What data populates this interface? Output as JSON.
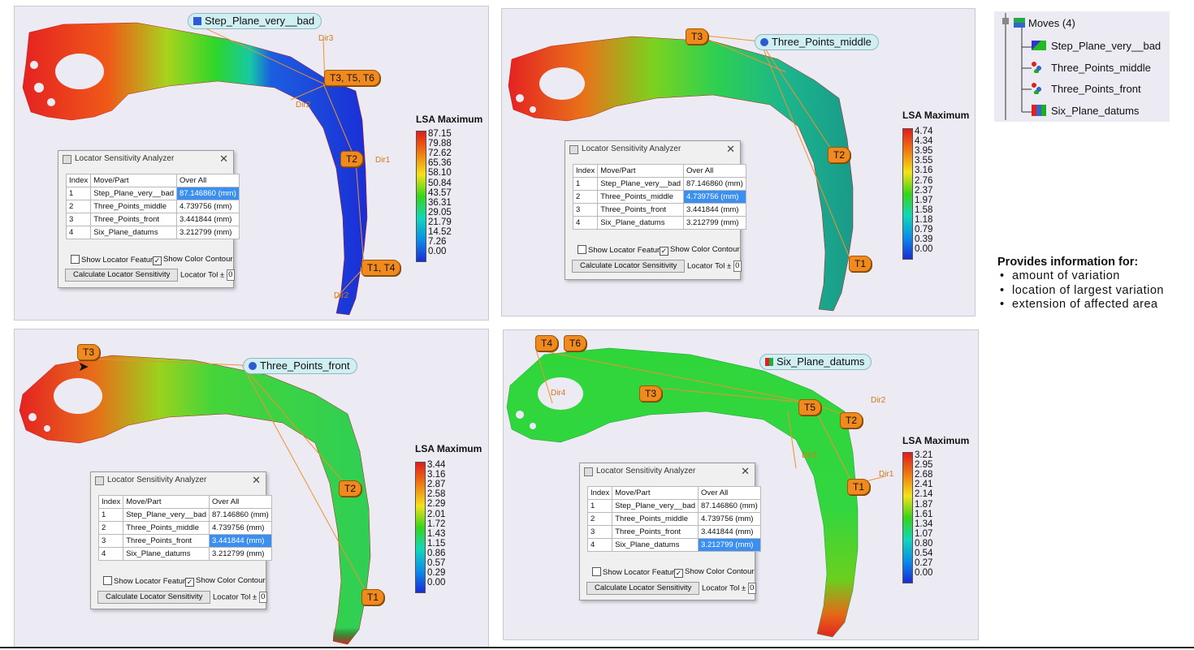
{
  "legend_title": "LSA Maximum",
  "dialog": {
    "title": "Locator Sensitivity Analyzer",
    "columns": [
      "Index",
      "Move/Part",
      "Over All"
    ],
    "rows": [
      {
        "index": "1",
        "name": "Step_Plane_very__bad",
        "value": "87.146860 (mm)"
      },
      {
        "index": "2",
        "name": "Three_Points_middle",
        "value": "4.739756 (mm)"
      },
      {
        "index": "3",
        "name": "Three_Points_front",
        "value": "3.441844 (mm)"
      },
      {
        "index": "4",
        "name": "Six_Plane_datums",
        "value": "3.212799 (mm)"
      }
    ],
    "show_locator_feature": "Show Locator Feature",
    "show_color_contour": "Show Color Contour",
    "calc_button": "Calculate Locator Sensitivity",
    "locator_tol": "Locator Tol ±",
    "tol_value": "0"
  },
  "panels": [
    {
      "move_name": "Step_Plane_very__bad",
      "selected_row": 0,
      "legend": [
        "87.15",
        "79.88",
        "72.62",
        "65.36",
        "58.10",
        "50.84",
        "43.57",
        "36.31",
        "29.05",
        "21.79",
        "14.52",
        "7.26",
        "0.00"
      ],
      "markers": [
        "T3, T5, T6",
        "T2",
        "T1, T4"
      ],
      "dirs": [
        "Dir3",
        "Dir2",
        "Dir1",
        "Dir2"
      ]
    },
    {
      "move_name": "Three_Points_middle",
      "selected_row": 1,
      "legend": [
        "4.74",
        "4.34",
        "3.95",
        "3.55",
        "3.16",
        "2.76",
        "2.37",
        "1.97",
        "1.58",
        "1.18",
        "0.79",
        "0.39",
        "0.00"
      ],
      "markers": [
        "T3",
        "T2",
        "T1"
      ],
      "dirs": []
    },
    {
      "move_name": "Three_Points_front",
      "selected_row": 2,
      "legend": [
        "3.44",
        "3.16",
        "2.87",
        "2.58",
        "2.29",
        "2.01",
        "1.72",
        "1.43",
        "1.15",
        "0.86",
        "0.57",
        "0.29",
        "0.00"
      ],
      "markers": [
        "T3",
        "T2",
        "T1"
      ],
      "dirs": []
    },
    {
      "move_name": "Six_Plane_datums",
      "selected_row": 3,
      "legend": [
        "3.21",
        "2.95",
        "2.68",
        "2.41",
        "2.14",
        "1.87",
        "1.61",
        "1.34",
        "1.07",
        "0.80",
        "0.54",
        "0.27",
        "0.00"
      ],
      "markers": [
        "T4",
        "T6",
        "T3",
        "T5",
        "T2",
        "T1"
      ],
      "dirs": [
        "Dir4",
        "Dir2",
        "Dir5",
        "Dir1"
      ]
    }
  ],
  "tree": {
    "root": "Moves (4)",
    "items": [
      "Step_Plane_very__bad",
      "Three_Points_middle",
      "Three_Points_front",
      "Six_Plane_datums"
    ]
  },
  "info": {
    "heading": "Provides information for:",
    "bullets": [
      "amount of variation",
      "location of  largest variation",
      "extension  of affected area"
    ]
  },
  "colors": {
    "accent_orange": "#f08a1e",
    "selection_blue": "#3b8ff0",
    "tag_bg": "#cfeff2",
    "legend_gradient": [
      "#e21b1b",
      "#f07a12",
      "#f3e21a",
      "#38d41a",
      "#12d7b8",
      "#0a8ee8",
      "#1a2bd8"
    ]
  }
}
